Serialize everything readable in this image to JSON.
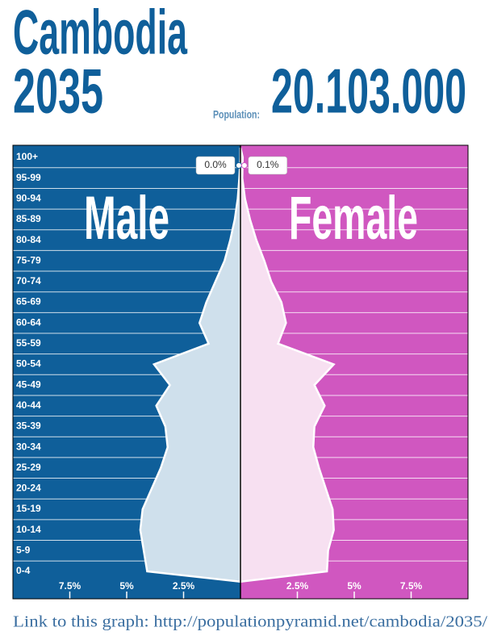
{
  "chart_data": {
    "type": "pyramid",
    "title": "Cambodia",
    "subtitle": "2035",
    "population_label": "Population:",
    "population": "20.103.000",
    "footer": "Link to this graph: http://populationpyramid.net/cambodia/2035/",
    "categories": [
      "0-4",
      "5-9",
      "10-14",
      "15-19",
      "20-24",
      "25-29",
      "30-34",
      "35-39",
      "40-44",
      "45-49",
      "50-54",
      "55-59",
      "60-64",
      "65-69",
      "70-74",
      "75-79",
      "80-84",
      "85-89",
      "90-94",
      "95-99",
      "100+"
    ],
    "series": [
      {
        "name": "Male",
        "color": "#0f5f9a",
        "fill": "#cfe0ec",
        "values": [
          4.1,
          4.25,
          4.4,
          4.3,
          3.9,
          3.5,
          3.2,
          3.3,
          3.7,
          3.1,
          3.8,
          1.4,
          1.8,
          1.5,
          1.1,
          0.7,
          0.45,
          0.25,
          0.12,
          0.05,
          0.0
        ],
        "value_labels": [
          null,
          null,
          null,
          null,
          null,
          null,
          null,
          null,
          null,
          null,
          null,
          null,
          null,
          null,
          null,
          null,
          null,
          null,
          null,
          null,
          "0.0%"
        ]
      },
      {
        "name": "Female",
        "color": "#d057c0",
        "fill": "#f7e0f1",
        "values": [
          3.8,
          3.85,
          4.1,
          4.05,
          3.75,
          3.45,
          3.2,
          3.25,
          3.7,
          3.25,
          4.1,
          1.65,
          2.0,
          1.8,
          1.35,
          1.05,
          0.7,
          0.42,
          0.2,
          0.08,
          0.1
        ],
        "value_labels": [
          null,
          null,
          null,
          null,
          null,
          null,
          null,
          null,
          null,
          null,
          null,
          null,
          null,
          null,
          null,
          null,
          null,
          null,
          null,
          null,
          "0.1%"
        ]
      }
    ],
    "xlim": [
      0,
      10
    ],
    "xticks": [
      {
        "value": 2.5,
        "label": "2.5%"
      },
      {
        "value": 5,
        "label": "5%"
      },
      {
        "value": 7.5,
        "label": "7.5%"
      }
    ],
    "grid": true
  }
}
